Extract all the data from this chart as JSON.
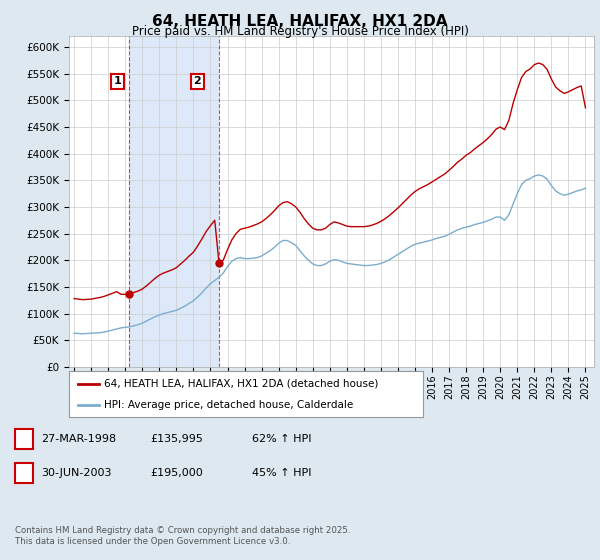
{
  "title": "64, HEATH LEA, HALIFAX, HX1 2DA",
  "subtitle": "Price paid vs. HM Land Registry's House Price Index (HPI)",
  "ylabel_ticks": [
    "£0",
    "£50K",
    "£100K",
    "£150K",
    "£200K",
    "£250K",
    "£300K",
    "£350K",
    "£400K",
    "£450K",
    "£500K",
    "£550K",
    "£600K"
  ],
  "ytick_vals": [
    0,
    50000,
    100000,
    150000,
    200000,
    250000,
    300000,
    350000,
    400000,
    450000,
    500000,
    550000,
    600000
  ],
  "ylim": [
    0,
    620000
  ],
  "background_color": "#dde8f0",
  "plot_bg_color": "#dde8f0",
  "chart_bg_color": "#ffffff",
  "shade_color": "#dde8f8",
  "red_line_color": "#bb0000",
  "blue_line_color": "#7aadce",
  "legend_label_red": "64, HEATH LEA, HALIFAX, HX1 2DA (detached house)",
  "legend_label_blue": "HPI: Average price, detached house, Calderdale",
  "sale1_date": "27-MAR-1998",
  "sale1_price": "£135,995",
  "sale1_hpi": "62% ↑ HPI",
  "sale1_year": 1998.23,
  "sale1_price_val": 135995,
  "sale2_date": "30-JUN-2003",
  "sale2_price": "£195,000",
  "sale2_hpi": "45% ↑ HPI",
  "sale2_year": 2003.5,
  "sale2_price_val": 195000,
  "footer": "Contains HM Land Registry data © Crown copyright and database right 2025.\nThis data is licensed under the Open Government Licence v3.0.",
  "hpi_years": [
    1995.0,
    1995.25,
    1995.5,
    1995.75,
    1996.0,
    1996.25,
    1996.5,
    1996.75,
    1997.0,
    1997.25,
    1997.5,
    1997.75,
    1998.0,
    1998.25,
    1998.5,
    1998.75,
    1999.0,
    1999.25,
    1999.5,
    1999.75,
    2000.0,
    2000.25,
    2000.5,
    2000.75,
    2001.0,
    2001.25,
    2001.5,
    2001.75,
    2002.0,
    2002.25,
    2002.5,
    2002.75,
    2003.0,
    2003.25,
    2003.5,
    2003.75,
    2004.0,
    2004.25,
    2004.5,
    2004.75,
    2005.0,
    2005.25,
    2005.5,
    2005.75,
    2006.0,
    2006.25,
    2006.5,
    2006.75,
    2007.0,
    2007.25,
    2007.5,
    2007.75,
    2008.0,
    2008.25,
    2008.5,
    2008.75,
    2009.0,
    2009.25,
    2009.5,
    2009.75,
    2010.0,
    2010.25,
    2010.5,
    2010.75,
    2011.0,
    2011.25,
    2011.5,
    2011.75,
    2012.0,
    2012.25,
    2012.5,
    2012.75,
    2013.0,
    2013.25,
    2013.5,
    2013.75,
    2014.0,
    2014.25,
    2014.5,
    2014.75,
    2015.0,
    2015.25,
    2015.5,
    2015.75,
    2016.0,
    2016.25,
    2016.5,
    2016.75,
    2017.0,
    2017.25,
    2017.5,
    2017.75,
    2018.0,
    2018.25,
    2018.5,
    2018.75,
    2019.0,
    2019.25,
    2019.5,
    2019.75,
    2020.0,
    2020.25,
    2020.5,
    2020.75,
    2021.0,
    2021.25,
    2021.5,
    2021.75,
    2022.0,
    2022.25,
    2022.5,
    2022.75,
    2023.0,
    2023.25,
    2023.5,
    2023.75,
    2024.0,
    2024.25,
    2024.5,
    2024.75,
    2025.0
  ],
  "hpi_values": [
    63000,
    62500,
    62000,
    62500,
    63000,
    63500,
    64000,
    65000,
    67000,
    69000,
    71000,
    73000,
    74000,
    75000,
    77000,
    79000,
    82000,
    86000,
    90000,
    94000,
    97000,
    100000,
    102000,
    104000,
    106000,
    110000,
    114000,
    119000,
    124000,
    131000,
    139000,
    148000,
    156000,
    162000,
    168000,
    176000,
    188000,
    198000,
    203000,
    205000,
    203000,
    203000,
    204000,
    205000,
    208000,
    213000,
    218000,
    224000,
    232000,
    237000,
    237000,
    233000,
    228000,
    218000,
    208000,
    200000,
    193000,
    190000,
    190000,
    193000,
    198000,
    201000,
    200000,
    197000,
    194000,
    193000,
    192000,
    191000,
    190000,
    190000,
    191000,
    192000,
    194000,
    197000,
    201000,
    206000,
    211000,
    216000,
    221000,
    226000,
    230000,
    232000,
    234000,
    236000,
    238000,
    241000,
    243000,
    245000,
    249000,
    253000,
    257000,
    260000,
    262000,
    264000,
    267000,
    269000,
    271000,
    274000,
    277000,
    281000,
    281000,
    275000,
    285000,
    305000,
    325000,
    342000,
    350000,
    353000,
    358000,
    360000,
    358000,
    352000,
    340000,
    330000,
    325000,
    322000,
    324000,
    327000,
    330000,
    332000,
    335000
  ],
  "red_years": [
    1995.0,
    1995.25,
    1995.5,
    1995.75,
    1996.0,
    1996.25,
    1996.5,
    1996.75,
    1997.0,
    1997.25,
    1997.5,
    1997.75,
    1998.0,
    1998.25,
    1998.5,
    1998.75,
    1999.0,
    1999.25,
    1999.5,
    1999.75,
    2000.0,
    2000.25,
    2000.5,
    2000.75,
    2001.0,
    2001.25,
    2001.5,
    2001.75,
    2002.0,
    2002.25,
    2002.5,
    2002.75,
    2003.0,
    2003.25,
    2003.5,
    2003.75,
    2004.0,
    2004.25,
    2004.5,
    2004.75,
    2005.0,
    2005.25,
    2005.5,
    2005.75,
    2006.0,
    2006.25,
    2006.5,
    2006.75,
    2007.0,
    2007.25,
    2007.5,
    2007.75,
    2008.0,
    2008.25,
    2008.5,
    2008.75,
    2009.0,
    2009.25,
    2009.5,
    2009.75,
    2010.0,
    2010.25,
    2010.5,
    2010.75,
    2011.0,
    2011.25,
    2011.5,
    2011.75,
    2012.0,
    2012.25,
    2012.5,
    2012.75,
    2013.0,
    2013.25,
    2013.5,
    2013.75,
    2014.0,
    2014.25,
    2014.5,
    2014.75,
    2015.0,
    2015.25,
    2015.5,
    2015.75,
    2016.0,
    2016.25,
    2016.5,
    2016.75,
    2017.0,
    2017.25,
    2017.5,
    2017.75,
    2018.0,
    2018.25,
    2018.5,
    2018.75,
    2019.0,
    2019.25,
    2019.5,
    2019.75,
    2020.0,
    2020.25,
    2020.5,
    2020.75,
    2021.0,
    2021.25,
    2021.5,
    2021.75,
    2022.0,
    2022.25,
    2022.5,
    2022.75,
    2023.0,
    2023.25,
    2023.5,
    2023.75,
    2024.0,
    2024.25,
    2024.5,
    2024.75,
    2025.0
  ],
  "red_values": [
    128000,
    127000,
    126000,
    126500,
    127000,
    128500,
    130000,
    132000,
    135000,
    138000,
    141000,
    135995,
    135995,
    137000,
    139500,
    142000,
    146000,
    152000,
    159000,
    166000,
    172000,
    176000,
    179000,
    182000,
    186000,
    193000,
    200000,
    208000,
    215000,
    227000,
    240000,
    254000,
    265000,
    275000,
    195000,
    200000,
    220000,
    238000,
    250000,
    258000,
    260000,
    262000,
    265000,
    268000,
    272000,
    278000,
    285000,
    293000,
    302000,
    308000,
    310000,
    306000,
    300000,
    290000,
    278000,
    268000,
    260000,
    257000,
    257000,
    260000,
    267000,
    272000,
    270000,
    267000,
    264000,
    263000,
    263000,
    263000,
    263000,
    264000,
    266000,
    269000,
    273000,
    278000,
    284000,
    291000,
    298000,
    306000,
    314000,
    322000,
    329000,
    334000,
    338000,
    342000,
    347000,
    352000,
    357000,
    362000,
    369000,
    376000,
    384000,
    390000,
    397000,
    402000,
    409000,
    415000,
    421000,
    428000,
    436000,
    446000,
    450000,
    445000,
    462000,
    494000,
    520000,
    543000,
    554000,
    559000,
    567000,
    570000,
    567000,
    558000,
    540000,
    525000,
    518000,
    513000,
    516000,
    520000,
    524000,
    527000,
    486000
  ]
}
